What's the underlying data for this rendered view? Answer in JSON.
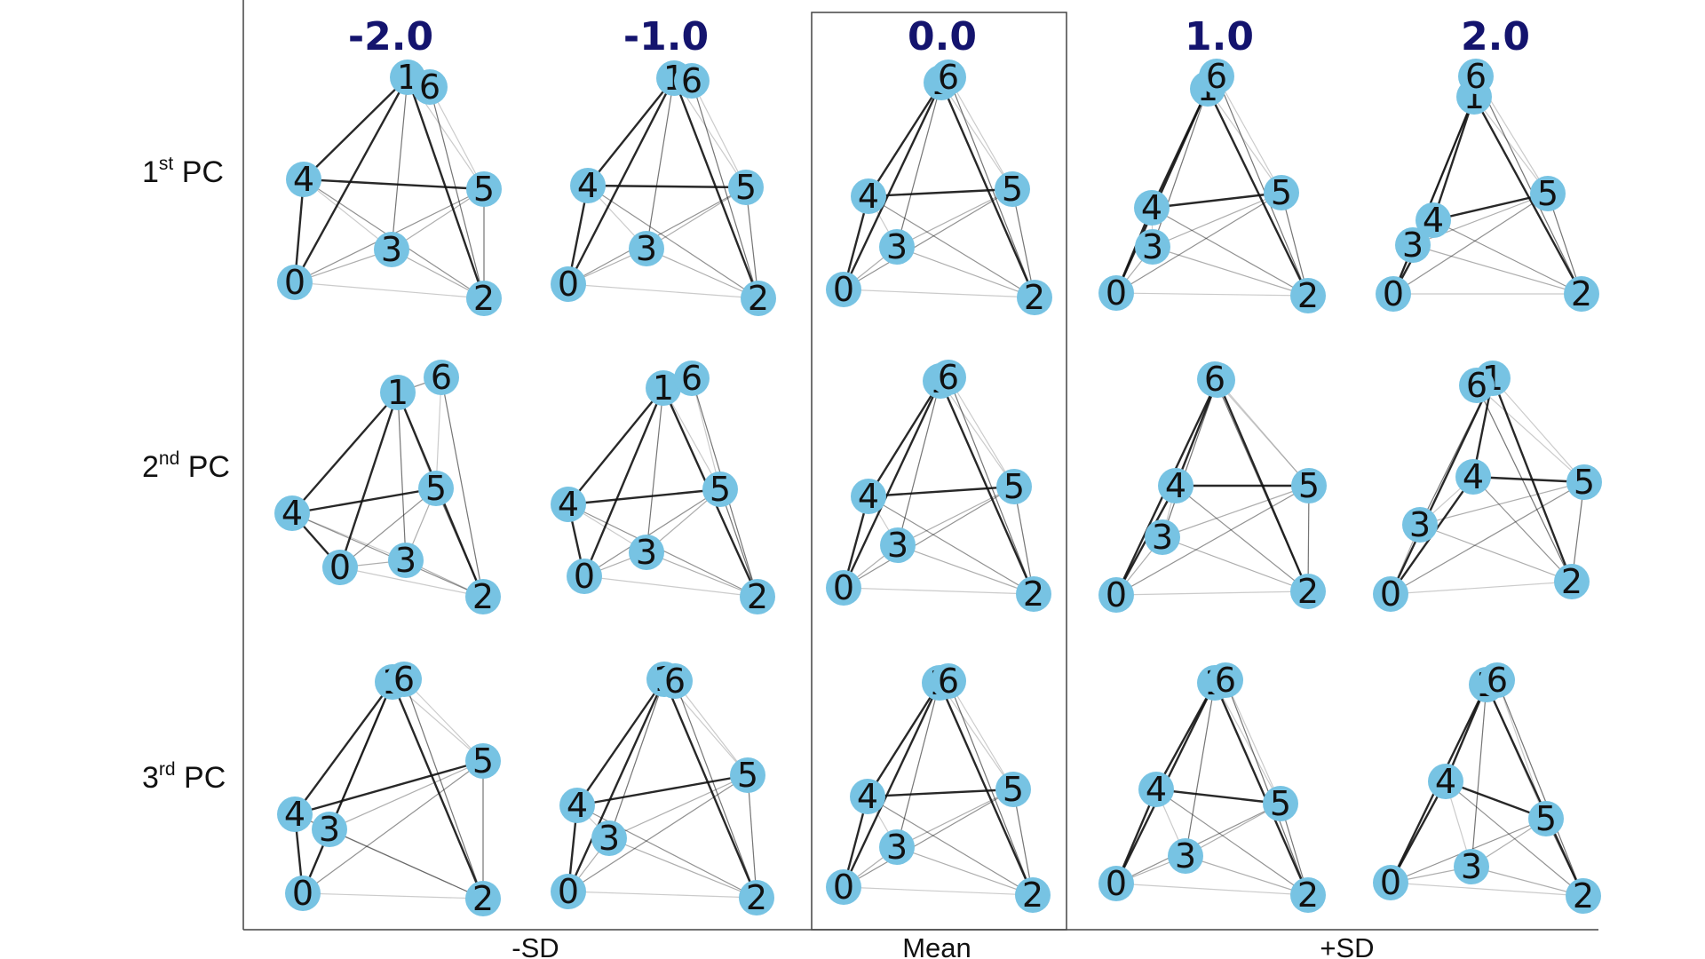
{
  "column_headers": [
    "-2.0",
    "-1.0",
    "0.0",
    "1.0",
    "2.0"
  ],
  "row_labels": [
    {
      "base": "1",
      "sup": "st",
      "suffix": " PC"
    },
    {
      "base": "2",
      "sup": "nd",
      "suffix": " PC"
    },
    {
      "base": "3",
      "sup": "rd",
      "suffix": " PC"
    }
  ],
  "group_labels": {
    "left": "-SD",
    "center": "Mean",
    "right": "+SD"
  },
  "colors": {
    "node": "#77c3e3",
    "edge": "#111111",
    "header": "#14146e",
    "frame": "#444444"
  },
  "node_ids": [
    "0",
    "1",
    "2",
    "3",
    "4",
    "5",
    "6"
  ]
}
